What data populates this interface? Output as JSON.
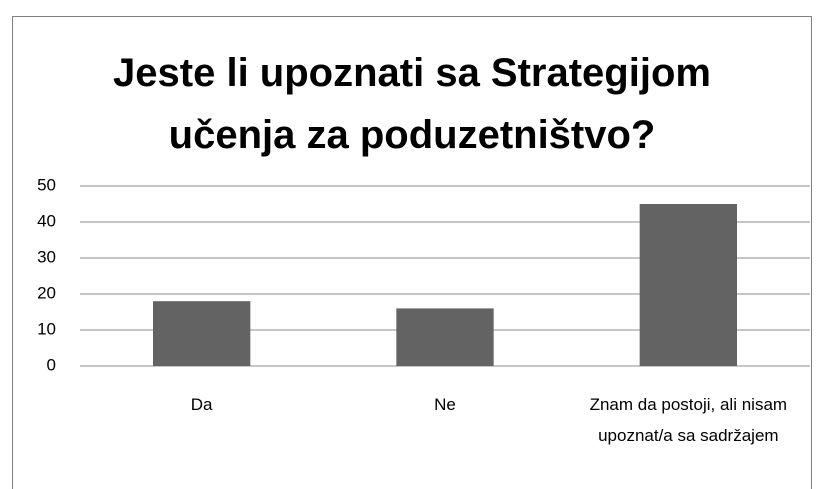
{
  "chart_data": {
    "type": "bar",
    "title": "Jeste li upoznati sa Strategijom učenja za poduzetništvo?",
    "categories": [
      "Da",
      "Ne",
      "Znam da postoji, ali nisam upoznat/a sa sadržajem"
    ],
    "values": [
      18,
      16,
      45
    ],
    "color": "#636363",
    "ylim": [
      0,
      50
    ],
    "yticks": [
      0,
      10,
      20,
      30,
      40,
      50
    ],
    "grid": true
  }
}
